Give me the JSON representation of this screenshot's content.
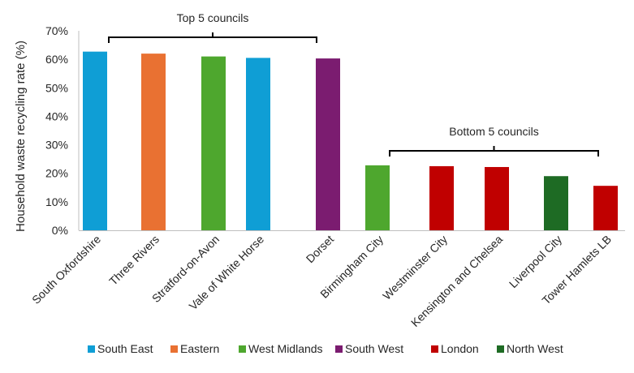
{
  "chart_data": {
    "type": "bar",
    "ylabel": "Household waste recycling rate (%)",
    "xlabel": "",
    "ylim": [
      0,
      70
    ],
    "yticks": [
      "0%",
      "10%",
      "20%",
      "30%",
      "40%",
      "50%",
      "60%",
      "70%"
    ],
    "grid": false,
    "legend_position": "bottom",
    "categories": [
      "South Oxfordshire",
      "Three Rivers",
      "Stratford-on-Avon",
      "Vale of White Horse",
      "Dorset",
      "Birmingham City",
      "Westminster City",
      "Kensington and Chelsea",
      "Liverpool City",
      "Tower Hamlets LB"
    ],
    "values": [
      62.7,
      62.0,
      61.0,
      60.5,
      60.3,
      22.8,
      22.5,
      22.2,
      19.0,
      15.6
    ],
    "regions": [
      "South East",
      "Eastern",
      "West Midlands",
      "South East",
      "South West",
      "West Midlands",
      "London",
      "London",
      "North West",
      "London"
    ],
    "legend": [
      {
        "name": "South East",
        "color": "#0f9ed5"
      },
      {
        "name": "Eastern",
        "color": "#e97132"
      },
      {
        "name": "West Midlands",
        "color": "#4ea72e"
      },
      {
        "name": "South West",
        "color": "#7b1c70"
      },
      {
        "name": "London",
        "color": "#c00000"
      },
      {
        "name": "North West",
        "color": "#1e6b24"
      }
    ],
    "annotations": [
      {
        "text": "Top 5 councils",
        "from": 0,
        "to": 4
      },
      {
        "text": "Bottom 5 councils",
        "from": 5,
        "to": 9
      }
    ]
  }
}
